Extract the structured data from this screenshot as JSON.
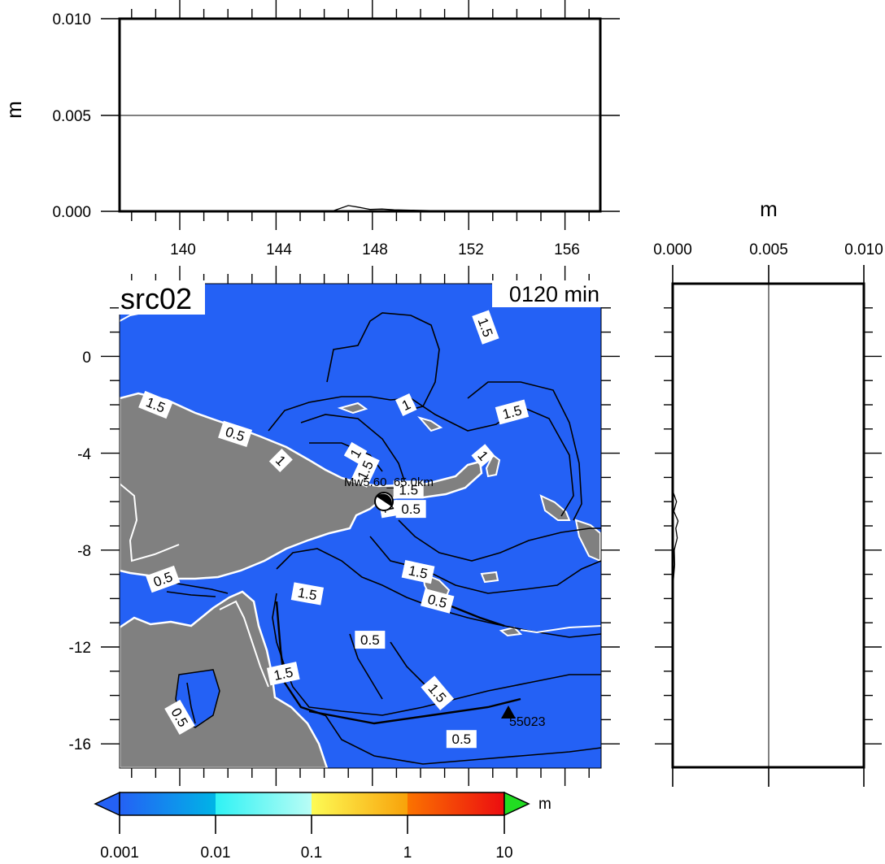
{
  "top_panel": {
    "ylabel": "m",
    "y_ticks": [
      "0.010",
      "0.005",
      "0.000"
    ],
    "y_tick_values": [
      0.01,
      0.005,
      0.0
    ],
    "x_ticks": [
      "140",
      "144",
      "148",
      "152",
      "156"
    ],
    "x_tick_values": [
      140,
      144,
      148,
      152,
      156
    ],
    "xlim": [
      137.5,
      157.5
    ],
    "ylim": [
      0.0,
      0.01
    ],
    "profile": [
      [
        145.2,
        2e-05
      ],
      [
        146.4,
        4e-05
      ],
      [
        147.0,
        0.0003
      ],
      [
        147.4,
        0.00022
      ],
      [
        147.9,
        0.0001
      ],
      [
        148.4,
        0.00012
      ],
      [
        148.9,
        8e-05
      ],
      [
        149.6,
        6e-05
      ],
      [
        150.4,
        4e-05
      ],
      [
        151.4,
        3e-05
      ],
      [
        152.4,
        2e-05
      ],
      [
        153.4,
        3e-05
      ],
      [
        154.4,
        2e-05
      ],
      [
        155.3,
        1e-05
      ]
    ]
  },
  "side_panel": {
    "xlabel": "m",
    "x_ticks": [
      "0.000",
      "0.005",
      "0.010"
    ],
    "x_tick_values": [
      0.0,
      0.005,
      0.01
    ],
    "xlim": [
      0.0,
      0.01
    ],
    "ylim": [
      -17.0,
      3.0
    ],
    "profile": [
      [
        -5.6,
        2e-05
      ],
      [
        -6.0,
        0.0002
      ],
      [
        -6.4,
        6e-05
      ],
      [
        -6.8,
        0.00028
      ],
      [
        -7.1,
        0.00016
      ],
      [
        -7.5,
        0.00024
      ],
      [
        -8.0,
        8e-05
      ],
      [
        -8.6,
        0.0001
      ],
      [
        -9.2,
        4e-05
      ],
      [
        -9.8,
        2e-05
      ]
    ]
  },
  "map": {
    "title": "src02",
    "time_label": "0120 min",
    "y_ticks": [
      "0",
      "-4",
      "-8",
      "-12",
      "-16"
    ],
    "y_tick_values": [
      0,
      -4,
      -8,
      -12,
      -16
    ],
    "xlim": [
      137.5,
      157.5
    ],
    "ylim": [
      -17.0,
      3.0
    ],
    "source_label": "Mw5.60_65.0km",
    "station_label": "55023",
    "ocean_color": "#2461f5",
    "land_color": "#808080",
    "contour_labels": [
      {
        "text": "1.5",
        "lon": 139.0,
        "lat": -2.0,
        "rot": 22
      },
      {
        "text": "0.5",
        "lon": 142.3,
        "lat": -3.2,
        "rot": 18
      },
      {
        "text": "1",
        "lon": 144.2,
        "lat": -4.3,
        "rot": 45
      },
      {
        "text": "1",
        "lon": 147.3,
        "lat": -4.0,
        "rot": -60
      },
      {
        "text": "1.5",
        "lon": 147.7,
        "lat": -4.7,
        "rot": -65
      },
      {
        "text": "1",
        "lon": 149.4,
        "lat": -2.0,
        "rot": -25
      },
      {
        "text": "1.5",
        "lon": 152.7,
        "lat": 1.2,
        "rot": 70
      },
      {
        "text": "1.5",
        "lon": 153.8,
        "lat": -2.3,
        "rot": -15
      },
      {
        "text": "1",
        "lon": 152.6,
        "lat": -4.1,
        "rot": 50
      },
      {
        "text": "1.5",
        "lon": 149.5,
        "lat": -5.5,
        "rot": 0
      },
      {
        "text": "0.5",
        "lon": 149.6,
        "lat": -6.3,
        "rot": 0
      },
      {
        "text": "1",
        "lon": 148.7,
        "lat": -6.3,
        "rot": 80
      },
      {
        "text": "1.5",
        "lon": 149.9,
        "lat": -8.9,
        "rot": 12
      },
      {
        "text": "0.5",
        "lon": 150.7,
        "lat": -10.1,
        "rot": 15
      },
      {
        "text": "0.5",
        "lon": 139.3,
        "lat": -9.2,
        "rot": -20
      },
      {
        "text": "1.5",
        "lon": 145.3,
        "lat": -9.8,
        "rot": 10
      },
      {
        "text": "0.5",
        "lon": 147.9,
        "lat": -11.7,
        "rot": 0
      },
      {
        "text": "1.5",
        "lon": 144.3,
        "lat": -13.1,
        "rot": -12
      },
      {
        "text": "1.5",
        "lon": 150.7,
        "lat": -13.9,
        "rot": 50
      },
      {
        "text": "0.5",
        "lon": 140.0,
        "lat": -14.9,
        "rot": 60
      },
      {
        "text": "0.5",
        "lon": 151.7,
        "lat": -15.8,
        "rot": 0
      }
    ]
  },
  "colorbar": {
    "unit": "m",
    "tick_labels": [
      "0.001",
      "0.01",
      "0.1",
      "1",
      "10"
    ],
    "colors": {
      "under": "#2461f5",
      "over": "#22dd22"
    }
  }
}
